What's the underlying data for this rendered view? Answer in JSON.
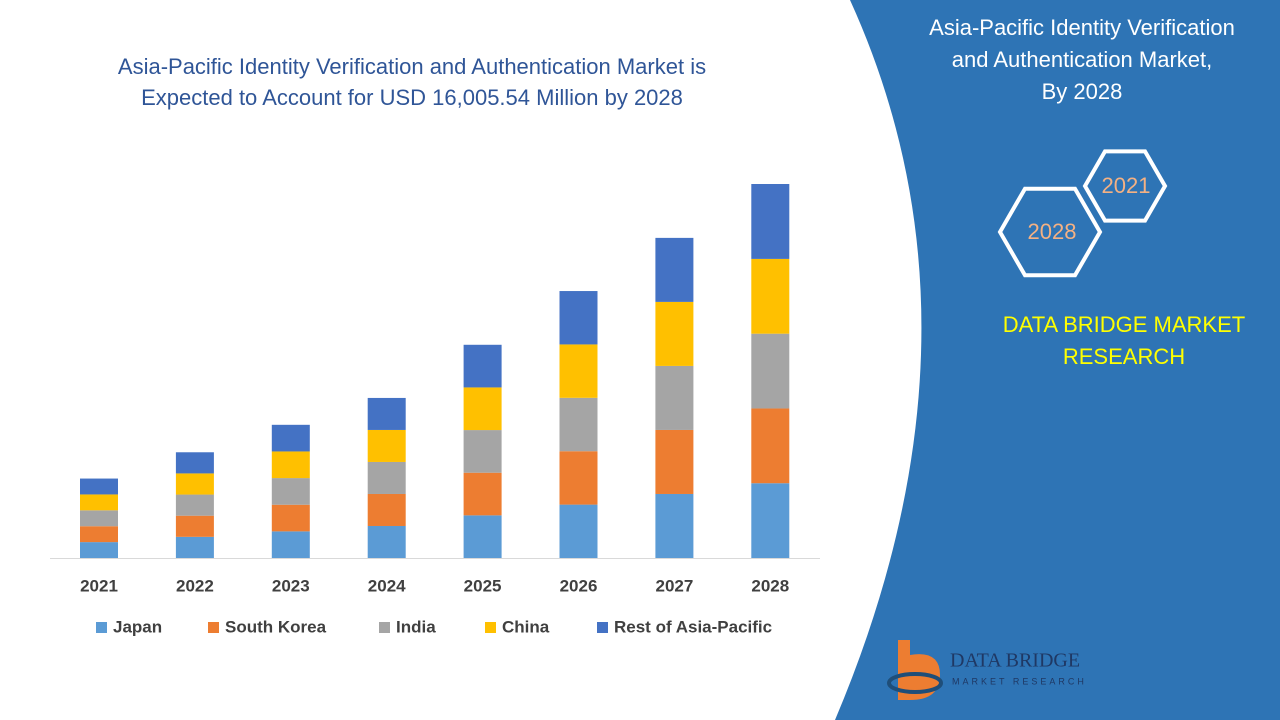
{
  "chart_data": {
    "type": "stacked_bar",
    "title": "Asia-Pacific Identity Verification and Authentication Market is",
    "subtitle": "Expected to Account for USD 16,005.54 Million by 2028",
    "categories": [
      "2021",
      "2022",
      "2023",
      "2024",
      "2025",
      "2026",
      "2027",
      "2028"
    ],
    "series": [
      {
        "name": "Japan",
        "color": "#5b9bd5",
        "values": [
          680,
          905,
          1140,
          1370,
          1825,
          2285,
          2740,
          3200
        ]
      },
      {
        "name": "South Korea",
        "color": "#ed7d31",
        "values": [
          680,
          905,
          1140,
          1370,
          1825,
          2285,
          2740,
          3200
        ]
      },
      {
        "name": "India",
        "color": "#a5a5a5",
        "values": [
          680,
          905,
          1140,
          1370,
          1825,
          2285,
          2740,
          3200
        ]
      },
      {
        "name": "China",
        "color": "#ffc000",
        "values": [
          680,
          905,
          1140,
          1370,
          1825,
          2285,
          2740,
          3200
        ]
      },
      {
        "name": "Rest of Asia-Pacific",
        "color": "#4472c4",
        "values": [
          680,
          905,
          1140,
          1370,
          1825,
          2285,
          2740,
          3206
        ]
      }
    ]
  },
  "panel": {
    "title_lines": [
      "Asia-Pacific Identity Verification",
      "and Authentication Market,",
      "By 2028"
    ],
    "hex_start": "2021",
    "hex_end": "2028",
    "brand_lines": [
      "DATA BRIDGE MARKET",
      "RESEARCH"
    ],
    "logo_name": "DATA BRIDGE",
    "logo_tagline": "MARKET RESEARCH"
  }
}
